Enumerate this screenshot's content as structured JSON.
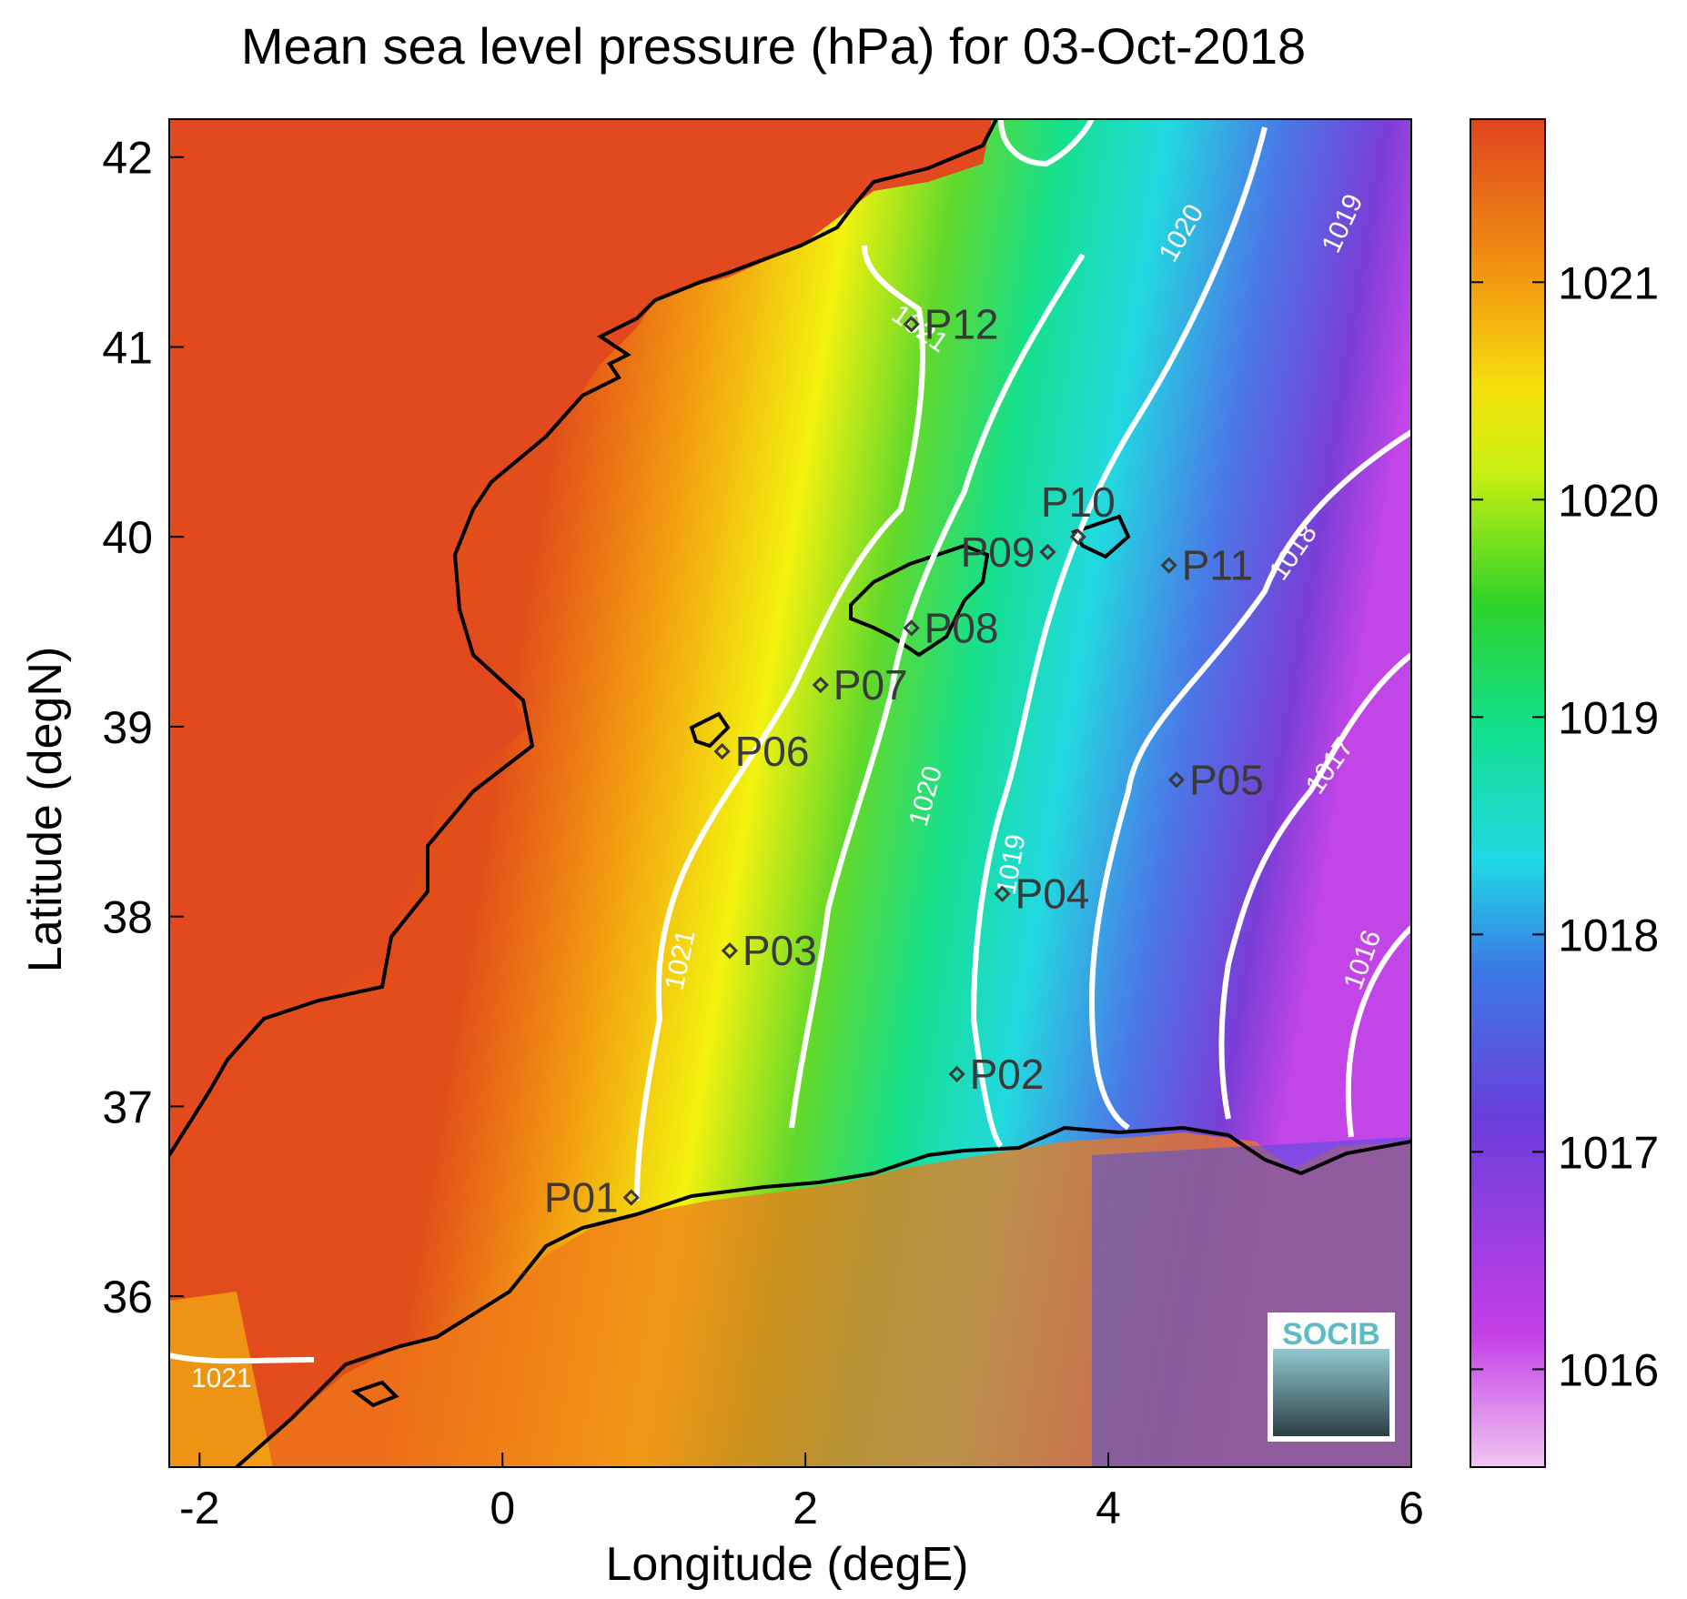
{
  "title": "Mean sea level pressure (hPa) for 03-Oct-2018",
  "xlabel": "Longitude (degE)",
  "ylabel": "Latitude (degN)",
  "logo_text": "SOCIB",
  "colors": {
    "land_high": "#e2491e",
    "coast": "#000000",
    "contour": "#ffffff",
    "marker": "#3a3a3a"
  },
  "chart_data": {
    "type": "heatmap",
    "xlim": [
      -2.2,
      6.0
    ],
    "ylim": [
      35.1,
      42.2
    ],
    "xticks": [
      -2,
      0,
      2,
      4,
      6
    ],
    "yticks": [
      36,
      37,
      38,
      39,
      40,
      41,
      42
    ],
    "colorbar": {
      "range": [
        1015.55,
        1021.75
      ],
      "ticks": [
        1016,
        1017,
        1018,
        1019,
        1020,
        1021
      ]
    },
    "contour_labels": [
      "1021",
      "1020",
      "1019",
      "1018",
      "1017",
      "1016"
    ],
    "stations": [
      {
        "name": "P01",
        "lon": 0.85,
        "lat": 36.52,
        "side": "left"
      },
      {
        "name": "P02",
        "lon": 3.0,
        "lat": 37.17,
        "side": "right"
      },
      {
        "name": "P03",
        "lon": 1.5,
        "lat": 37.82,
        "side": "right"
      },
      {
        "name": "P04",
        "lon": 3.3,
        "lat": 38.12,
        "side": "right"
      },
      {
        "name": "P05",
        "lon": 4.45,
        "lat": 38.72,
        "side": "right"
      },
      {
        "name": "P06",
        "lon": 1.45,
        "lat": 38.87,
        "side": "right"
      },
      {
        "name": "P07",
        "lon": 2.1,
        "lat": 39.22,
        "side": "right"
      },
      {
        "name": "P08",
        "lon": 2.7,
        "lat": 39.52,
        "side": "right"
      },
      {
        "name": "P09",
        "lon": 3.6,
        "lat": 39.92,
        "side": "left"
      },
      {
        "name": "P10",
        "lon": 3.8,
        "lat": 40.0,
        "side": "above"
      },
      {
        "name": "P11",
        "lon": 4.4,
        "lat": 39.85,
        "side": "right"
      },
      {
        "name": "P12",
        "lon": 2.7,
        "lat": 41.12,
        "side": "right"
      }
    ]
  }
}
